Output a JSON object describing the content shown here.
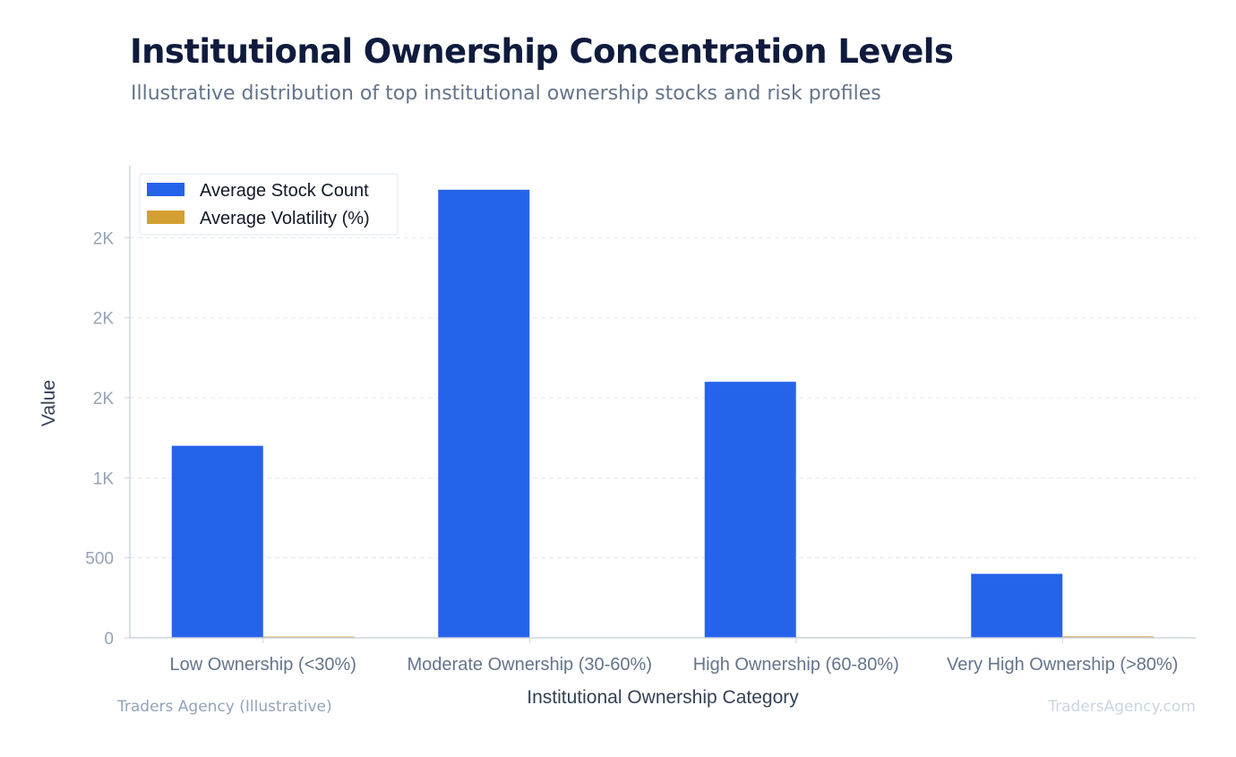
{
  "header": {
    "title": "Institutional Ownership Concentration Levels",
    "subtitle": "Illustrative distribution of top institutional ownership stocks and risk profiles"
  },
  "footer": {
    "source": "Traders Agency (Illustrative)",
    "site": "TradersAgency.com"
  },
  "colors": {
    "series_1": "#2563eb",
    "series_2": "#d4a033",
    "axis": "#cbd5e1",
    "grid": "#e5e7eb",
    "tick_text": "#94a3b8",
    "category_text": "#64748b",
    "axis_title": "#334155"
  },
  "chart_data": {
    "type": "bar",
    "categories": [
      "Low Ownership (<30%)",
      "Moderate Ownership (30-60%)",
      "High Ownership (60-80%)",
      "Very High Ownership (>80%)"
    ],
    "series": [
      {
        "name": "Average Stock Count",
        "values": [
          1200,
          2800,
          1600,
          400
        ]
      },
      {
        "name": "Average Volatility (%)",
        "values": [
          8,
          2,
          3,
          9
        ]
      }
    ],
    "xlabel": "Institutional Ownership Category",
    "ylabel": "Value",
    "ylim": [
      0,
      2950
    ],
    "yticks": [
      0,
      500,
      1000,
      1500,
      2000,
      2500
    ],
    "ytick_labels": [
      "0",
      "500",
      "1K",
      "2K",
      "2K",
      "2K"
    ],
    "grid": true,
    "legend_position": "top-left"
  }
}
